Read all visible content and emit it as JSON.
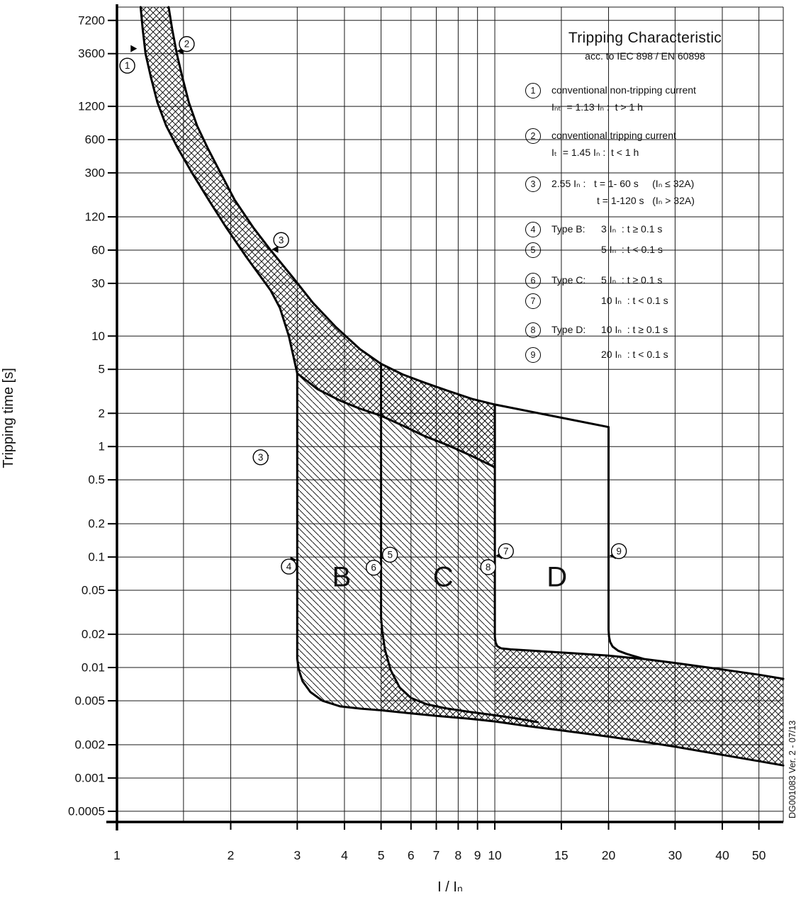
{
  "legend": {
    "title": "Tripping Characteristic",
    "subtitle": "acc. to IEC 898 / EN 60898",
    "items": [
      {
        "num": "1",
        "lines": [
          "conventional non-tripping current",
          "Iₙₜ  = 1.13 Iₙ :  t > 1 h"
        ]
      },
      {
        "num": "2",
        "lines": [
          "conventional tripping current",
          "Iₜ  = 1.45 Iₙ :  t < 1 h"
        ]
      },
      {
        "num": "3",
        "lines": [
          "2.55 Iₙ :   t = 1- 60 s     (Iₙ ≤ 32A)",
          "t = 1-120 s   (Iₙ > 32A)"
        ]
      },
      {
        "num": "4",
        "type": "Type B:",
        "text": "3 Iₙ  : t ≥ 0.1 s"
      },
      {
        "num": "5",
        "type": "",
        "text": "5 Iₙ  : t < 0.1 s"
      },
      {
        "num": "6",
        "type": "Type C:",
        "text": "5 Iₙ  : t ≥ 0.1 s"
      },
      {
        "num": "7",
        "type": "",
        "text": "10 Iₙ  : t < 0.1 s"
      },
      {
        "num": "8",
        "type": "Type D:",
        "text": "10 Iₙ  : t ≥ 0.1 s"
      },
      {
        "num": "9",
        "type": "",
        "text": "20 Iₙ  : t < 0.1 s"
      }
    ]
  },
  "side_note": "DG001083 Ver. 2 - 07/13",
  "chart_data": {
    "type": "line",
    "title": "Tripping Characteristic",
    "subtitle": "acc. to IEC 898 / EN 60898",
    "xlabel": "I / Iₙ",
    "ylabel": "Tripping time [s]",
    "x_scale": "log",
    "y_scale": "log",
    "grid": true,
    "x_range": [
      1,
      58
    ],
    "y_range": [
      0.0004,
      9500
    ],
    "x_ticks": [
      1,
      2,
      3,
      4,
      5,
      6,
      7,
      8,
      9,
      10,
      15,
      20,
      30,
      40,
      50
    ],
    "x_grid": [
      1,
      1.5,
      2,
      3,
      4,
      5,
      6,
      7,
      8,
      9,
      10,
      15,
      20,
      30,
      40,
      50
    ],
    "y_ticks": [
      "7200",
      "3600",
      "1200",
      "600",
      "300",
      "120",
      "60",
      "30",
      "10",
      "5",
      "2",
      "1",
      "0.5",
      "0.2",
      "0.1",
      "0.05",
      "0.02",
      "0.01",
      "0.005",
      "0.002",
      "0.001",
      "0.0005"
    ],
    "series": [
      {
        "name": "thermal-upper-boundary",
        "width": 3,
        "points": [
          [
            1.37,
            9500
          ],
          [
            1.4,
            6000
          ],
          [
            1.44,
            3600
          ],
          [
            1.49,
            2200
          ],
          [
            1.55,
            1300
          ],
          [
            1.63,
            800
          ],
          [
            1.74,
            500
          ],
          [
            1.88,
            300
          ],
          [
            2.05,
            170
          ],
          [
            2.3,
            95
          ],
          [
            2.55,
            60
          ],
          [
            2.9,
            35
          ],
          [
            3.3,
            20
          ],
          [
            3.8,
            12
          ],
          [
            4.4,
            7.6
          ],
          [
            5.0,
            5.6
          ],
          [
            5.7,
            4.5
          ],
          [
            6.5,
            3.8
          ],
          [
            7.5,
            3.2
          ],
          [
            8.7,
            2.7
          ],
          [
            10,
            2.4
          ],
          [
            20,
            1.5
          ]
        ]
      },
      {
        "name": "thermal-lower-boundary",
        "width": 3,
        "points": [
          [
            1.155,
            9500
          ],
          [
            1.17,
            6000
          ],
          [
            1.19,
            3600
          ],
          [
            1.23,
            2200
          ],
          [
            1.28,
            1300
          ],
          [
            1.35,
            800
          ],
          [
            1.45,
            500
          ],
          [
            1.58,
            300
          ],
          [
            1.75,
            170
          ],
          [
            1.95,
            95
          ],
          [
            2.2,
            52
          ],
          [
            2.55,
            26
          ],
          [
            2.7,
            18
          ],
          [
            2.85,
            10
          ],
          [
            3.0,
            4.6
          ],
          [
            3.4,
            3.3
          ],
          [
            3.9,
            2.6
          ],
          [
            4.4,
            2.2
          ],
          [
            5.0,
            1.9
          ],
          [
            5.7,
            1.55
          ],
          [
            6.5,
            1.25
          ],
          [
            7.5,
            1.03
          ],
          [
            8.7,
            0.82
          ],
          [
            10,
            0.65
          ]
        ]
      },
      {
        "name": "type-b-boundary",
        "width": 3,
        "points": [
          [
            3,
            4.6
          ],
          [
            3,
            0.012
          ],
          [
            3.03,
            0.0095
          ],
          [
            3.1,
            0.0075
          ],
          [
            3.25,
            0.006
          ],
          [
            3.5,
            0.005
          ],
          [
            3.9,
            0.00445
          ],
          [
            4.4,
            0.00425
          ],
          [
            5,
            0.0041
          ],
          [
            6,
            0.00385
          ],
          [
            7,
            0.00365
          ],
          [
            8.5,
            0.00345
          ],
          [
            10,
            0.00325
          ],
          [
            12,
            0.00297
          ],
          [
            15,
            0.0027
          ],
          [
            20,
            0.00237
          ],
          [
            25,
            0.00212
          ],
          [
            30,
            0.00192
          ],
          [
            40,
            0.00162
          ],
          [
            50,
            0.00142
          ],
          [
            58,
            0.0013
          ]
        ]
      },
      {
        "name": "type-c-boundary",
        "width": 3,
        "points": [
          [
            5,
            5.6
          ],
          [
            5,
            0.028
          ],
          [
            5.04,
            0.021
          ],
          [
            5.12,
            0.0145
          ],
          [
            5.3,
            0.0095
          ],
          [
            5.6,
            0.0066
          ],
          [
            6.0,
            0.0053
          ],
          [
            6.6,
            0.00465
          ],
          [
            7.4,
            0.00428
          ],
          [
            8.5,
            0.00398
          ],
          [
            10,
            0.0037
          ],
          [
            11.5,
            0.00345
          ],
          [
            13,
            0.0032
          ]
        ]
      },
      {
        "name": "type-d-boundary",
        "width": 3,
        "points": [
          [
            10,
            2.4
          ],
          [
            10,
            0.019
          ],
          [
            10.05,
            0.0168
          ],
          [
            10.15,
            0.0156
          ],
          [
            10.4,
            0.0149
          ],
          [
            11,
            0.0146
          ],
          [
            13,
            0.0141
          ],
          [
            16,
            0.0135
          ],
          [
            20,
            0.0128
          ],
          [
            25,
            0.0119
          ],
          [
            30,
            0.011
          ],
          [
            40,
            0.0096
          ],
          [
            50,
            0.0086
          ],
          [
            58,
            0.0079
          ]
        ]
      },
      {
        "name": "type-d-right-boundary",
        "width": 3,
        "points": [
          [
            20,
            1.5
          ],
          [
            20,
            0.022
          ],
          [
            20.06,
            0.019
          ],
          [
            20.2,
            0.017
          ],
          [
            20.5,
            0.0155
          ],
          [
            21.2,
            0.0142
          ],
          [
            22.3,
            0.0133
          ],
          [
            24.8,
            0.01195
          ]
        ]
      }
    ],
    "fills": [
      {
        "name": "thermal-band-fill",
        "pattern": "cross",
        "points": [
          [
            1.37,
            9500
          ],
          [
            1.4,
            6000
          ],
          [
            1.44,
            3600
          ],
          [
            1.49,
            2200
          ],
          [
            1.55,
            1300
          ],
          [
            1.63,
            800
          ],
          [
            1.74,
            500
          ],
          [
            1.88,
            300
          ],
          [
            2.05,
            170
          ],
          [
            2.3,
            95
          ],
          [
            2.55,
            60
          ],
          [
            2.9,
            35
          ],
          [
            3.3,
            20
          ],
          [
            3.8,
            12
          ],
          [
            4.4,
            7.6
          ],
          [
            5.0,
            5.6
          ],
          [
            5.7,
            4.5
          ],
          [
            6.5,
            3.8
          ],
          [
            7.5,
            3.2
          ],
          [
            8.7,
            2.7
          ],
          [
            10,
            2.4
          ],
          [
            10,
            0.65
          ],
          [
            8.7,
            0.82
          ],
          [
            7.5,
            1.03
          ],
          [
            6.5,
            1.25
          ],
          [
            5.7,
            1.55
          ],
          [
            5.0,
            1.9
          ],
          [
            4.4,
            2.2
          ],
          [
            3.9,
            2.6
          ],
          [
            3.4,
            3.3
          ],
          [
            3.0,
            4.6
          ],
          [
            2.85,
            10
          ],
          [
            2.7,
            18
          ],
          [
            2.55,
            26
          ],
          [
            2.2,
            52
          ],
          [
            1.95,
            95
          ],
          [
            1.75,
            170
          ],
          [
            1.58,
            300
          ],
          [
            1.45,
            500
          ],
          [
            1.35,
            800
          ],
          [
            1.28,
            1300
          ],
          [
            1.23,
            2200
          ],
          [
            1.19,
            3600
          ],
          [
            1.17,
            6000
          ],
          [
            1.155,
            9500
          ]
        ]
      },
      {
        "name": "region-b-fill",
        "pattern": "diag",
        "points": [
          [
            3,
            4.6
          ],
          [
            3.4,
            3.3
          ],
          [
            3.9,
            2.6
          ],
          [
            4.4,
            2.2
          ],
          [
            5,
            1.9
          ],
          [
            5,
            0.0041
          ],
          [
            4.4,
            0.00425
          ],
          [
            3.9,
            0.00445
          ],
          [
            3.5,
            0.005
          ],
          [
            3.25,
            0.006
          ],
          [
            3.1,
            0.0075
          ],
          [
            3.03,
            0.0095
          ],
          [
            3,
            0.012
          ]
        ]
      },
      {
        "name": "region-c-fill",
        "pattern": "diag",
        "points": [
          [
            5,
            5.6
          ],
          [
            5.7,
            4.5
          ],
          [
            6.5,
            3.8
          ],
          [
            7.5,
            3.2
          ],
          [
            8.7,
            2.7
          ],
          [
            10,
            2.4
          ],
          [
            10,
            0.0037
          ],
          [
            8.5,
            0.00398
          ],
          [
            7.4,
            0.00428
          ],
          [
            6.6,
            0.00465
          ],
          [
            6.0,
            0.0053
          ],
          [
            5.6,
            0.0066
          ],
          [
            5.3,
            0.0095
          ],
          [
            5.12,
            0.0145
          ],
          [
            5.04,
            0.021
          ],
          [
            5,
            0.028
          ]
        ]
      },
      {
        "name": "instantaneous-band-left-fill",
        "pattern": "cross",
        "points": [
          [
            5,
            0.028
          ],
          [
            5.04,
            0.021
          ],
          [
            5.12,
            0.0145
          ],
          [
            5.3,
            0.0095
          ],
          [
            5.6,
            0.0066
          ],
          [
            6.0,
            0.0053
          ],
          [
            6.6,
            0.00465
          ],
          [
            7.4,
            0.00428
          ],
          [
            8.5,
            0.00398
          ],
          [
            10,
            0.0037
          ],
          [
            11.5,
            0.00345
          ],
          [
            13,
            0.0032
          ],
          [
            13,
            0.00288
          ],
          [
            12,
            0.00297
          ],
          [
            10,
            0.00325
          ],
          [
            8.5,
            0.00345
          ],
          [
            7,
            0.00365
          ],
          [
            6,
            0.00385
          ],
          [
            5,
            0.0041
          ]
        ]
      },
      {
        "name": "instantaneous-band-right-fill",
        "pattern": "cross",
        "points": [
          [
            10,
            0.019
          ],
          [
            10.05,
            0.0168
          ],
          [
            10.15,
            0.0156
          ],
          [
            10.4,
            0.0149
          ],
          [
            11,
            0.0146
          ],
          [
            13,
            0.0141
          ],
          [
            16,
            0.0135
          ],
          [
            20,
            0.0128
          ],
          [
            25,
            0.0119
          ],
          [
            30,
            0.011
          ],
          [
            40,
            0.0096
          ],
          [
            50,
            0.0086
          ],
          [
            58,
            0.0079
          ],
          [
            58,
            0.0013
          ],
          [
            50,
            0.00142
          ],
          [
            40,
            0.00162
          ],
          [
            30,
            0.00192
          ],
          [
            25,
            0.00212
          ],
          [
            20,
            0.00237
          ],
          [
            15,
            0.0027
          ],
          [
            12,
            0.00297
          ],
          [
            10,
            0.00325
          ]
        ]
      }
    ],
    "markers": [
      {
        "label": "1",
        "x": 1.065,
        "t": 2800,
        "wedge": {
          "x": 1.13,
          "t": 4000,
          "dir": "right"
        }
      },
      {
        "label": "2",
        "x": 1.53,
        "t": 4400,
        "wedge": {
          "x": 1.44,
          "t": 3800,
          "dir": "left"
        }
      },
      {
        "label": "3",
        "x": 2.72,
        "t": 74,
        "wedge": {
          "x": 2.57,
          "t": 61,
          "dir": "left"
        }
      },
      {
        "label": "3",
        "x": 2.4,
        "t": 0.8,
        "wedge": {
          "x": 2.53,
          "t": 0.83,
          "dir": "right"
        }
      },
      {
        "label": "4",
        "x": 2.85,
        "t": 0.082,
        "wedge": {
          "x": 2.99,
          "t": 0.094,
          "dir": "right"
        }
      },
      {
        "label": "5",
        "x": 5.28,
        "t": 0.105,
        "wedge": {
          "x": 5.01,
          "t": 0.098,
          "dir": "left"
        }
      },
      {
        "label": "6",
        "x": 4.78,
        "t": 0.08,
        "wedge": {
          "x": 4.99,
          "t": 0.084,
          "dir": "right"
        }
      },
      {
        "label": "7",
        "x": 10.7,
        "t": 0.113,
        "wedge": {
          "x": 10.05,
          "t": 0.103,
          "dir": "left"
        }
      },
      {
        "label": "8",
        "x": 9.6,
        "t": 0.081,
        "wedge": null
      },
      {
        "label": "9",
        "x": 21.3,
        "t": 0.113,
        "wedge": {
          "x": 20.1,
          "t": 0.103,
          "dir": "left"
        }
      }
    ],
    "region_labels": [
      {
        "text": "B",
        "x": 3.93,
        "t": 0.066
      },
      {
        "text": "C",
        "x": 7.3,
        "t": 0.066
      },
      {
        "text": "D",
        "x": 14.6,
        "t": 0.066
      }
    ]
  }
}
